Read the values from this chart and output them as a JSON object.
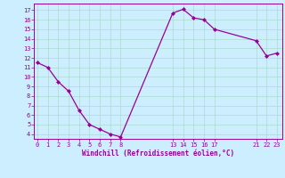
{
  "x": [
    0,
    1,
    2,
    3,
    4,
    5,
    6,
    7,
    8,
    13,
    14,
    15,
    16,
    17,
    21,
    22,
    23
  ],
  "y": [
    11.5,
    11.0,
    9.5,
    8.5,
    6.5,
    5.0,
    4.5,
    4.0,
    3.7,
    16.7,
    17.1,
    16.2,
    16.0,
    15.0,
    13.8,
    12.2,
    12.5
  ],
  "line_color": "#990099",
  "marker": "D",
  "marker_size": 2.0,
  "linewidth": 0.9,
  "bg_color": "#cceeff",
  "grid_color": "#aaddcc",
  "xlabel": "Windchill (Refroidissement éolien,°C)",
  "xlabel_color": "#990099",
  "tick_color": "#990099",
  "yticks": [
    4,
    5,
    6,
    7,
    8,
    9,
    10,
    11,
    12,
    13,
    14,
    15,
    16,
    17
  ],
  "xticks": [
    0,
    1,
    2,
    3,
    4,
    5,
    6,
    7,
    8,
    13,
    14,
    15,
    16,
    17,
    21,
    22,
    23
  ],
  "xlim": [
    -0.3,
    23.5
  ],
  "ylim": [
    3.5,
    17.7
  ],
  "figwidth": 3.2,
  "figheight": 2.0,
  "dpi": 100
}
